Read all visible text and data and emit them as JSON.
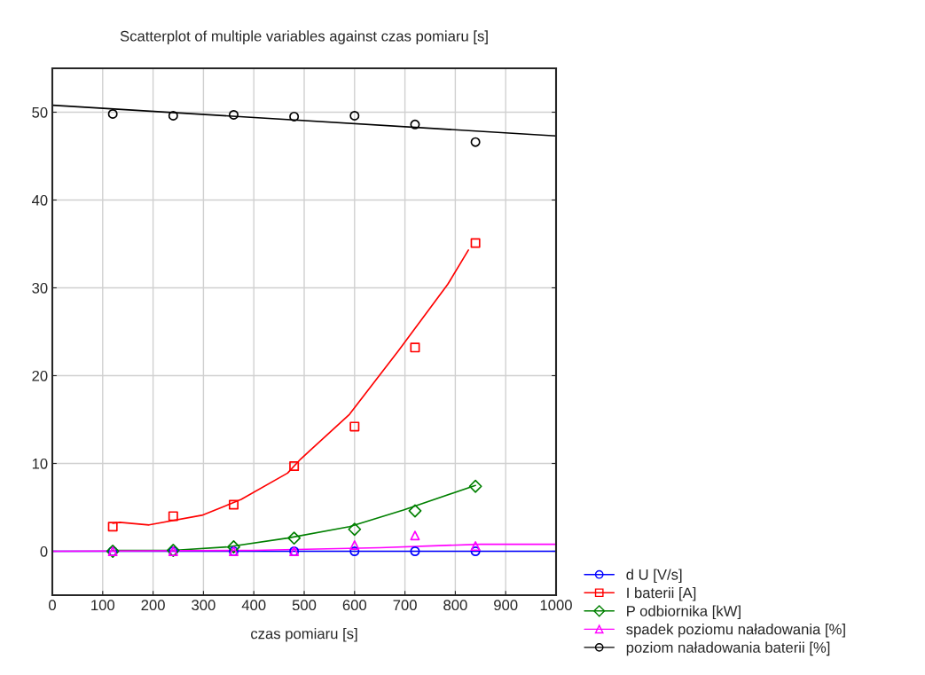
{
  "chart_data": {
    "type": "scatter",
    "title": "Scatterplot of multiple variables against czas pomiaru [s]",
    "xlabel": "czas pomiaru [s]",
    "x": [
      120,
      240,
      360,
      480,
      600,
      720,
      840
    ],
    "series": [
      {
        "name": "d U [V/s]",
        "color": "#0000ff",
        "marker": "circle",
        "values": [
          0,
          0,
          0,
          0,
          0,
          0,
          0
        ]
      },
      {
        "name": "I baterii [A]",
        "color": "#ff0000",
        "marker": "square",
        "values": [
          2.8,
          4.0,
          5.3,
          9.7,
          14.2,
          23.2,
          35.1
        ]
      },
      {
        "name": "P odbiornika [kW]",
        "color": "#008000",
        "marker": "diamond",
        "values": [
          0.0,
          0.1,
          0.5,
          1.5,
          2.5,
          4.6,
          7.4
        ]
      },
      {
        "name": "spadek poziomu naładowania [%]",
        "color": "#ff00ff",
        "marker": "triangle",
        "values": [
          0,
          0,
          0,
          0,
          0.7,
          1.8,
          0.6
        ]
      },
      {
        "name": "poziom naładowania baterii [%]",
        "color": "#000000",
        "marker": "circle",
        "values": [
          49.8,
          49.6,
          49.7,
          49.5,
          49.6,
          48.6,
          46.6
        ]
      },
      {
        "type": "line",
        "color": "#0000ff",
        "x": [
          0,
          1000
        ],
        "values": [
          0,
          0
        ]
      },
      {
        "type": "line",
        "color": "#ff0000",
        "x": [
          120,
          134,
          192,
          297,
          375,
          467,
          493,
          590,
          688,
          785,
          826
        ],
        "values": [
          3.2,
          3.3,
          3.0,
          4.1,
          5.9,
          8.9,
          10.5,
          15.6,
          22.9,
          30.4,
          34.3
        ]
      },
      {
        "type": "line",
        "color": "#008000",
        "x": [
          120,
          240,
          349,
          467,
          590,
          697,
          840
        ],
        "values": [
          0.1,
          0.1,
          0.5,
          1.5,
          2.8,
          4.7,
          7.5
        ]
      },
      {
        "type": "line",
        "color": "#ff00ff",
        "x": [
          0,
          400,
          650,
          850,
          1000
        ],
        "values": [
          0,
          0.1,
          0.4,
          0.8,
          0.8
        ]
      },
      {
        "type": "line",
        "color": "#000000",
        "x": [
          0,
          1000
        ],
        "values": [
          50.8,
          47.3
        ]
      }
    ],
    "xlim": [
      0,
      1000
    ],
    "xticks": [
      0,
      100,
      200,
      300,
      400,
      500,
      600,
      700,
      800,
      900,
      1000
    ],
    "ylim": [
      -5,
      55
    ],
    "yticks": [
      0,
      10,
      20,
      30,
      40,
      50
    ],
    "grid": true,
    "legend": "bottom right"
  }
}
